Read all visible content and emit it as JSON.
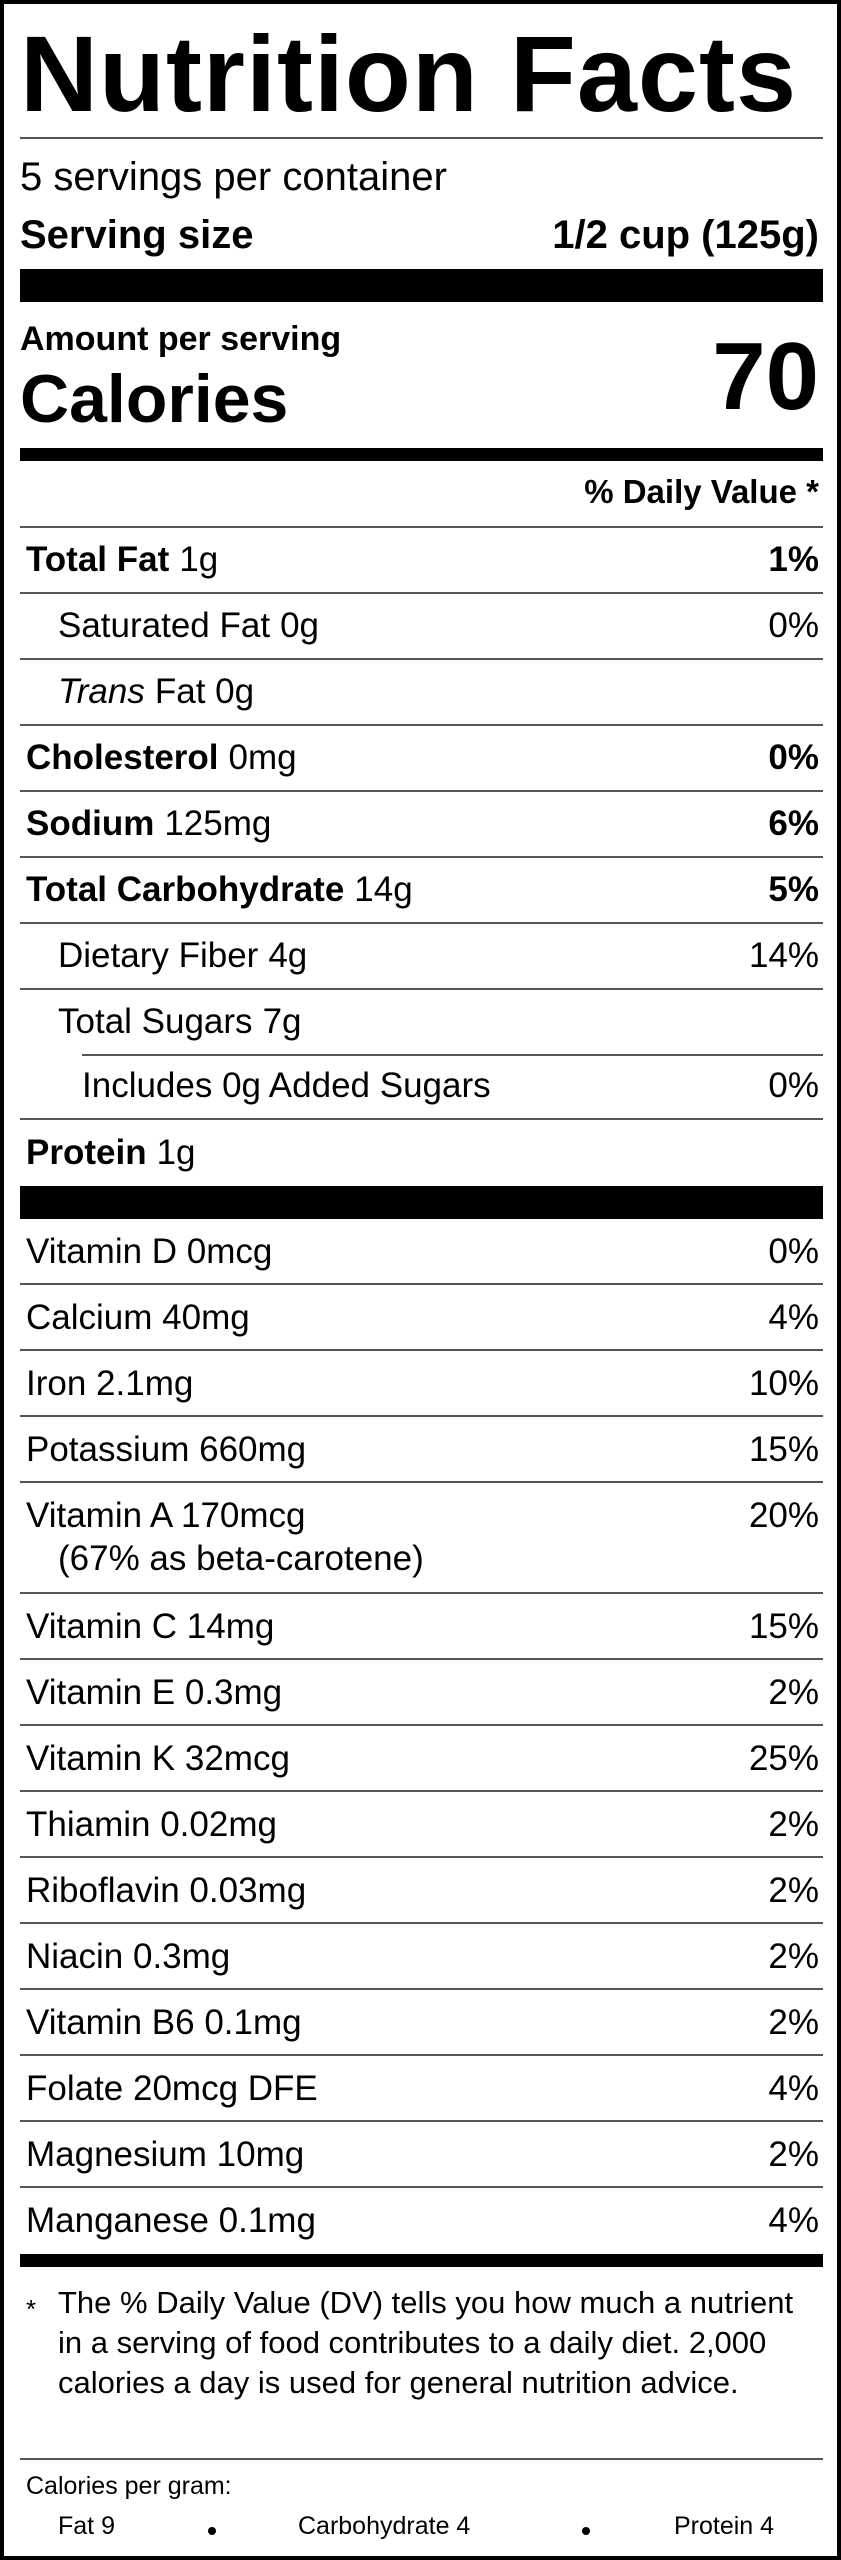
{
  "header": {
    "title": "Nutrition Facts"
  },
  "servings": {
    "per_container": "5 servings per container",
    "size_label": "Serving size",
    "size_value": "1/2 cup (125g)"
  },
  "calories": {
    "amount_label": "Amount per serving",
    "label": "Calories",
    "value": "70"
  },
  "dv_header": "% Daily Value *",
  "nutrients": [
    {
      "name": "Total Fat",
      "amount": "1g",
      "dv": "1%",
      "style": "bold"
    },
    {
      "name": "Saturated Fat",
      "amount": "0g",
      "dv": "0%",
      "style": "indent"
    },
    {
      "name": "Trans",
      "amount": "Fat 0g",
      "style": "indent-italic"
    },
    {
      "name": "Cholesterol",
      "amount": "0mg",
      "dv": "0%",
      "style": "bold"
    },
    {
      "name": "Sodium",
      "amount": "125mg",
      "dv": "6%",
      "style": "bold"
    },
    {
      "name": "Total Carbohydrate",
      "amount": "14g",
      "dv": "5%",
      "style": "bold"
    },
    {
      "name": "Dietary Fiber",
      "amount": "4g",
      "dv": "14%",
      "style": "indent"
    },
    {
      "name": "Total Sugars",
      "amount": "7g",
      "style": "indent"
    },
    {
      "name": "Includes 0g Added Sugars",
      "dv": "0%",
      "style": "indent2"
    },
    {
      "name": "Protein",
      "amount": "1g",
      "style": "bold"
    }
  ],
  "vitamins": [
    {
      "name": "Vitamin D 0mcg",
      "dv": "0%"
    },
    {
      "name": "Calcium 40mg",
      "dv": "4%"
    },
    {
      "name": "Iron 2.1mg",
      "dv": "10%"
    },
    {
      "name": "Potassium 660mg",
      "dv": "15%"
    },
    {
      "name": "Vitamin A 170mcg",
      "dv": "20%",
      "note": "(67% as beta-carotene)"
    },
    {
      "name": "Vitamin C 14mg",
      "dv": "15%"
    },
    {
      "name": "Vitamin E 0.3mg",
      "dv": "2%"
    },
    {
      "name": "Vitamin K 32mcg",
      "dv": "25%"
    },
    {
      "name": "Thiamin 0.02mg",
      "dv": "2%"
    },
    {
      "name": "Riboflavin 0.03mg",
      "dv": "2%"
    },
    {
      "name": "Niacin 0.3mg",
      "dv": "2%"
    },
    {
      "name": "Vitamin B6 0.1mg",
      "dv": "2%"
    },
    {
      "name": "Folate 20mcg DFE",
      "dv": "4%"
    },
    {
      "name": "Magnesium 10mg",
      "dv": "2%"
    },
    {
      "name": "Manganese 0.1mg",
      "dv": "4%"
    }
  ],
  "footnote": {
    "marker": "*",
    "text": "The % Daily Value (DV) tells you how much a nutrient in a serving of food contributes to a daily diet. 2,000 calories a day is used for general nutrition advice."
  },
  "footer": {
    "label": "Calories per gram:",
    "items": [
      "Fat 9",
      "Carbohydrate 4",
      "Protein 4"
    ]
  }
}
